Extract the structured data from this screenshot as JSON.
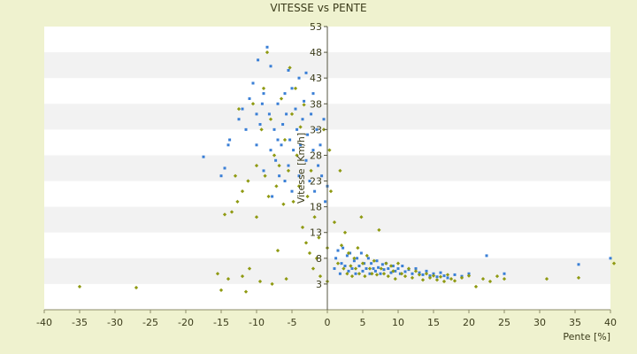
{
  "chart_data": {
    "type": "scatter",
    "title": "VITESSE vs PENTE",
    "xlabel": "Pente [%]",
    "ylabel": "Vitesse [Km/h]",
    "xlim": [
      -40,
      40
    ],
    "ylim": [
      3,
      53
    ],
    "x_ticks": [
      "-40",
      "-35",
      "-30",
      "-25",
      "-20",
      "-15",
      "-10",
      "-5",
      "0",
      "5",
      "10",
      "15",
      "20",
      "25",
      "30",
      "35",
      "40"
    ],
    "y_ticks": [
      "3",
      "8",
      "13",
      "18",
      "23",
      "28",
      "33",
      "38",
      "43",
      "48",
      "53"
    ],
    "grid": "horizontal bands",
    "legend": "none",
    "series": [
      {
        "color": "#3a7fd6",
        "points": [
          [
            -17.5,
            27.7
          ],
          [
            -15,
            24
          ],
          [
            -14.5,
            25.5
          ],
          [
            -14,
            30
          ],
          [
            -13.8,
            31
          ],
          [
            -12.5,
            35
          ],
          [
            -12,
            37
          ],
          [
            -11.5,
            33
          ],
          [
            -11,
            39
          ],
          [
            -10.5,
            42
          ],
          [
            -10,
            30
          ],
          [
            -10,
            36
          ],
          [
            -9.8,
            46.5
          ],
          [
            -9.5,
            34
          ],
          [
            -9.2,
            38
          ],
          [
            -9,
            25
          ],
          [
            -9,
            40
          ],
          [
            -8.5,
            49
          ],
          [
            -8.2,
            36
          ],
          [
            -8,
            29
          ],
          [
            -8,
            45.3
          ],
          [
            -7.8,
            20
          ],
          [
            -7.5,
            33
          ],
          [
            -7.3,
            27
          ],
          [
            -7,
            31
          ],
          [
            -7,
            38
          ],
          [
            -6.8,
            24
          ],
          [
            -6.5,
            30
          ],
          [
            -6.3,
            34
          ],
          [
            -6,
            23
          ],
          [
            -6,
            40
          ],
          [
            -5.8,
            36
          ],
          [
            -5.5,
            26
          ],
          [
            -5.5,
            44.5
          ],
          [
            -5.3,
            31
          ],
          [
            -5,
            21
          ],
          [
            -5,
            41
          ],
          [
            -4.8,
            29
          ],
          [
            -4.5,
            37
          ],
          [
            -4.3,
            33
          ],
          [
            -4,
            43
          ],
          [
            -4,
            24
          ],
          [
            -3.8,
            30
          ],
          [
            -3.5,
            35
          ],
          [
            -3.3,
            38.5
          ],
          [
            -3,
            27
          ],
          [
            -3,
            44
          ],
          [
            -2.8,
            32
          ],
          [
            -2.5,
            23
          ],
          [
            -2.3,
            36
          ],
          [
            -2,
            29
          ],
          [
            -2,
            40
          ],
          [
            -1.8,
            21
          ],
          [
            -1.5,
            33
          ],
          [
            -1.3,
            26
          ],
          [
            -1,
            30
          ],
          [
            -0.8,
            24
          ],
          [
            -0.5,
            35
          ],
          [
            -0.3,
            19
          ],
          [
            0,
            22
          ],
          [
            1,
            6
          ],
          [
            1.2,
            8
          ],
          [
            1.5,
            9.5
          ],
          [
            1.8,
            5
          ],
          [
            2,
            7
          ],
          [
            2.2,
            10
          ],
          [
            2.5,
            6.5
          ],
          [
            2.8,
            8.5
          ],
          [
            3,
            5.5
          ],
          [
            3.2,
            9
          ],
          [
            3.5,
            6
          ],
          [
            3.8,
            7.5
          ],
          [
            4,
            5
          ],
          [
            4.2,
            8
          ],
          [
            4.5,
            6.5
          ],
          [
            4.8,
            9
          ],
          [
            5,
            5.5
          ],
          [
            5.2,
            7
          ],
          [
            5.5,
            6
          ],
          [
            5.8,
            8
          ],
          [
            6,
            5
          ],
          [
            6.2,
            7
          ],
          [
            6.5,
            6
          ],
          [
            6.8,
            5.5
          ],
          [
            7,
            7.5
          ],
          [
            7.2,
            6.2
          ],
          [
            7.5,
            5
          ],
          [
            7.8,
            6.8
          ],
          [
            8,
            5.8
          ],
          [
            8.3,
            7
          ],
          [
            8.6,
            6
          ],
          [
            9,
            5.2
          ],
          [
            9.3,
            6.5
          ],
          [
            9.6,
            5.5
          ],
          [
            10,
            6
          ],
          [
            10.3,
            5
          ],
          [
            10.6,
            6.5
          ],
          [
            11,
            5.4
          ],
          [
            11.5,
            5.8
          ],
          [
            12,
            5
          ],
          [
            12.5,
            6
          ],
          [
            13,
            5.2
          ],
          [
            13.5,
            4.8
          ],
          [
            14,
            5.5
          ],
          [
            14.5,
            4.6
          ],
          [
            15,
            5
          ],
          [
            15.5,
            4.4
          ],
          [
            16,
            5.2
          ],
          [
            16.5,
            4.6
          ],
          [
            17,
            4.2
          ],
          [
            18,
            4.8
          ],
          [
            19,
            4.5
          ],
          [
            20,
            5
          ],
          [
            22.5,
            8.5
          ],
          [
            25,
            5
          ],
          [
            35.5,
            6.8
          ],
          [
            40,
            8
          ]
        ]
      },
      {
        "color": "#8f9a12",
        "points": [
          [
            -35,
            2.5
          ],
          [
            -27,
            2.3
          ],
          [
            -15.5,
            5
          ],
          [
            -15,
            1.8
          ],
          [
            -14.5,
            16.5
          ],
          [
            -14,
            4
          ],
          [
            -13.5,
            17
          ],
          [
            -13,
            24
          ],
          [
            -12.7,
            19
          ],
          [
            -12.5,
            37
          ],
          [
            -12,
            21
          ],
          [
            -12,
            4.5
          ],
          [
            -11.5,
            1.5
          ],
          [
            -11.2,
            23
          ],
          [
            -11,
            6
          ],
          [
            -10.5,
            38
          ],
          [
            -10,
            16
          ],
          [
            -10,
            26
          ],
          [
            -9.5,
            3.5
          ],
          [
            -9.3,
            33
          ],
          [
            -9,
            41
          ],
          [
            -8.8,
            24
          ],
          [
            -8.5,
            48
          ],
          [
            -8.3,
            20
          ],
          [
            -8,
            35
          ],
          [
            -7.8,
            3
          ],
          [
            -7.5,
            28
          ],
          [
            -7.2,
            22
          ],
          [
            -7,
            9.5
          ],
          [
            -6.8,
            26
          ],
          [
            -6.5,
            39
          ],
          [
            -6.2,
            18.5
          ],
          [
            -6,
            31
          ],
          [
            -5.8,
            4
          ],
          [
            -5.5,
            25
          ],
          [
            -5.3,
            45
          ],
          [
            -5,
            36
          ],
          [
            -4.8,
            19
          ],
          [
            -4.5,
            41
          ],
          [
            -4.3,
            28
          ],
          [
            -4,
            22
          ],
          [
            -3.8,
            33.5
          ],
          [
            -3.5,
            14
          ],
          [
            -3.3,
            37.8
          ],
          [
            -3,
            11
          ],
          [
            -2.8,
            20
          ],
          [
            -2.5,
            9
          ],
          [
            -2.3,
            25
          ],
          [
            -2,
            6
          ],
          [
            -1.8,
            16
          ],
          [
            -1.5,
            8
          ],
          [
            -1.2,
            12
          ],
          [
            -1,
            4.5
          ],
          [
            -0.5,
            33
          ],
          [
            0,
            3.5
          ],
          [
            0,
            10
          ],
          [
            0.3,
            29
          ],
          [
            0.5,
            21
          ],
          [
            1,
            15
          ],
          [
            1.5,
            7
          ],
          [
            1.8,
            25
          ],
          [
            2,
            10.5
          ],
          [
            2.3,
            6
          ],
          [
            2.5,
            13
          ],
          [
            2.8,
            5
          ],
          [
            3,
            9
          ],
          [
            3.3,
            6.5
          ],
          [
            3.5,
            4.5
          ],
          [
            3.8,
            8
          ],
          [
            4,
            6
          ],
          [
            4.3,
            10
          ],
          [
            4.5,
            5
          ],
          [
            4.8,
            16
          ],
          [
            5,
            7
          ],
          [
            5.3,
            4.5
          ],
          [
            5.6,
            8.5
          ],
          [
            6,
            6
          ],
          [
            6.3,
            5
          ],
          [
            6.6,
            7.5
          ],
          [
            7,
            4.8
          ],
          [
            7.3,
            13.5
          ],
          [
            7.6,
            6
          ],
          [
            8,
            5
          ],
          [
            8.3,
            7
          ],
          [
            8.6,
            4.5
          ],
          [
            9,
            6.5
          ],
          [
            9.3,
            5.5
          ],
          [
            9.6,
            4
          ],
          [
            10,
            7
          ],
          [
            10.5,
            5
          ],
          [
            11,
            4.5
          ],
          [
            11.5,
            6
          ],
          [
            12,
            4.2
          ],
          [
            12.5,
            5.5
          ],
          [
            13,
            4.8
          ],
          [
            13.5,
            3.8
          ],
          [
            14,
            5
          ],
          [
            14.5,
            4.2
          ],
          [
            15,
            4.6
          ],
          [
            15.5,
            3.8
          ],
          [
            16,
            4.4
          ],
          [
            16.5,
            3.5
          ],
          [
            17,
            4.8
          ],
          [
            17.5,
            4
          ],
          [
            18,
            3.6
          ],
          [
            19,
            4.2
          ],
          [
            20,
            4.6
          ],
          [
            21,
            2.5
          ],
          [
            22,
            4
          ],
          [
            23,
            3.5
          ],
          [
            24,
            4.5
          ],
          [
            25,
            4
          ],
          [
            31,
            4
          ],
          [
            35.5,
            4.2
          ],
          [
            40.5,
            7
          ]
        ]
      }
    ]
  }
}
